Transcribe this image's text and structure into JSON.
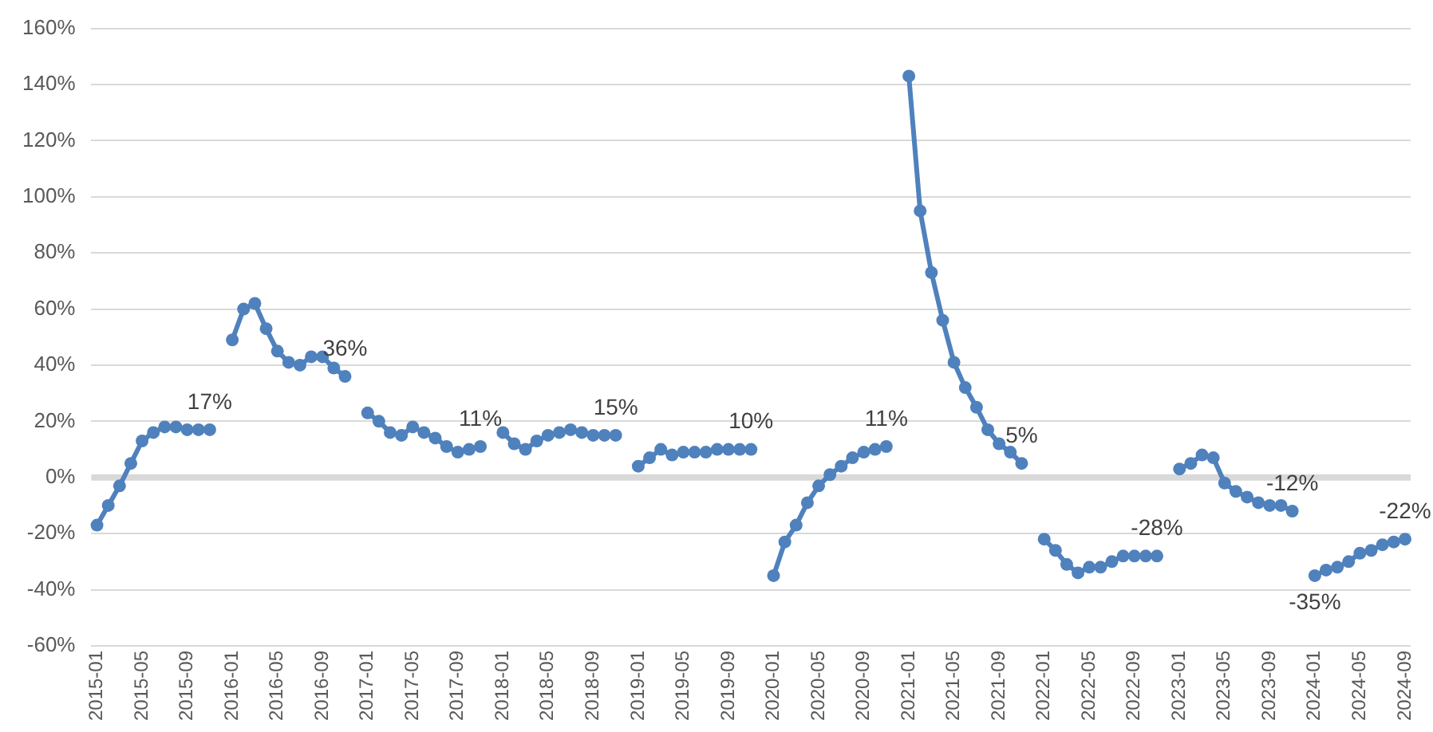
{
  "chart_data": {
    "type": "line",
    "categories": [
      "2015-01",
      null,
      null,
      null,
      "2015-05",
      null,
      null,
      null,
      "2015-09",
      null,
      null,
      null,
      "2016-01",
      null,
      null,
      null,
      "2016-05",
      null,
      null,
      null,
      "2016-09",
      null,
      null,
      null,
      "2017-01",
      null,
      null,
      null,
      "2017-05",
      null,
      null,
      null,
      "2017-09",
      null,
      null,
      null,
      "2018-01",
      null,
      null,
      null,
      "2018-05",
      null,
      null,
      null,
      "2018-09",
      null,
      null,
      null,
      "2019-01",
      null,
      null,
      null,
      "2019-05",
      null,
      null,
      null,
      "2019-09",
      null,
      null,
      null,
      "2020-01",
      null,
      null,
      null,
      "2020-05",
      null,
      null,
      null,
      "2020-09",
      null,
      null,
      null,
      "2021-01",
      null,
      null,
      null,
      "2021-05",
      null,
      null,
      null,
      "2021-09",
      null,
      null,
      null,
      "2022-01",
      null,
      null,
      null,
      "2022-05",
      null,
      null,
      null,
      "2022-09",
      null,
      null,
      null,
      "2023-01",
      null,
      null,
      null,
      "2023-05",
      null,
      null,
      null,
      "2023-09",
      null,
      null,
      null,
      "2024-01",
      null,
      null,
      null,
      "2024-05",
      null,
      null,
      null,
      "2024-09"
    ],
    "series": [
      {
        "color": "#4f81bd",
        "values": [
          -17,
          -10,
          -3,
          5,
          13,
          16,
          18,
          18,
          17,
          17,
          17,
          null,
          49,
          60,
          62,
          53,
          45,
          41,
          40,
          43,
          43,
          39,
          36,
          null,
          23,
          20,
          16,
          15,
          18,
          16,
          14,
          11,
          9,
          10,
          11,
          null,
          16,
          12,
          10,
          13,
          15,
          16,
          17,
          16,
          15,
          15,
          15,
          null,
          4,
          7,
          10,
          8,
          9,
          9,
          9,
          10,
          10,
          10,
          10,
          null,
          -35,
          -23,
          -17,
          -9,
          -3,
          1,
          4,
          7,
          9,
          10,
          11,
          null,
          143,
          95,
          73,
          56,
          41,
          32,
          25,
          17,
          12,
          9,
          5,
          null,
          -22,
          -26,
          -31,
          -34,
          -32,
          -32,
          -30,
          -28,
          -28,
          -28,
          -28,
          null,
          3,
          5,
          8,
          7,
          -2,
          -5,
          -7,
          -9,
          -10,
          -10,
          -12,
          null,
          -35,
          -33,
          -32,
          -30,
          -27,
          -26,
          -24,
          -23,
          -22
        ]
      }
    ],
    "ylim": [
      -60,
      160
    ],
    "yticks": [
      {
        "value": -60,
        "label": "-60%"
      },
      {
        "value": -40,
        "label": "-40%"
      },
      {
        "value": -20,
        "label": "-20%"
      },
      {
        "value": 0,
        "label": "0%"
      },
      {
        "value": 20,
        "label": "20%"
      },
      {
        "value": 40,
        "label": "40%"
      },
      {
        "value": 60,
        "label": "60%"
      },
      {
        "value": 80,
        "label": "80%"
      },
      {
        "value": 100,
        "label": "100%"
      },
      {
        "value": 120,
        "label": "120%"
      },
      {
        "value": 140,
        "label": "140%"
      },
      {
        "value": 160,
        "label": "160%"
      }
    ],
    "ref_lines": [
      {
        "axis": "y",
        "value": 0,
        "color": "#d9d9d9"
      }
    ],
    "grid": "y",
    "legend": false,
    "marker": "circle",
    "line_style": "solid",
    "annotations": [
      {
        "text": "17%",
        "y": 17
      },
      {
        "text": "36%",
        "y": 36
      },
      {
        "text": "11%",
        "y": 11
      },
      {
        "text": "15%",
        "y": 15
      },
      {
        "text": "10%",
        "y": 10
      },
      {
        "text": "11%",
        "y": 11
      },
      {
        "text": "5%",
        "y": 5
      },
      {
        "text": "-28%",
        "y": -28
      },
      {
        "text": "-12%",
        "y": -12
      },
      {
        "text": "-35%",
        "y": -35
      },
      {
        "text": "-22%",
        "y": -22
      }
    ]
  }
}
